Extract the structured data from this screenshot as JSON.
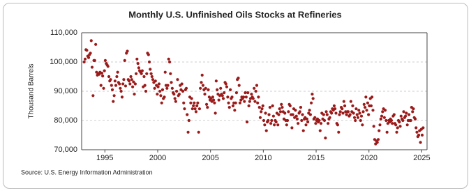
{
  "chart_data": {
    "type": "scatter",
    "title": "Monthly U.S. Unfinished Oils Stocks at Refineries",
    "y_label": "Thousand Barrels",
    "source": "Source: U.S. Energy Information Administration",
    "color": "#9b1b1b",
    "grid": true,
    "xlim": [
      1992.8,
      2025.5
    ],
    "xticks": [
      1995,
      2000,
      2005,
      2010,
      2015,
      2020,
      2025
    ],
    "ylim": [
      70000,
      110000
    ],
    "yticks": [
      {
        "value": 70000,
        "label": "70,000"
      },
      {
        "value": 80000,
        "label": "80,000"
      },
      {
        "value": 90000,
        "label": "90,000"
      },
      {
        "value": 100000,
        "label": "100,000"
      },
      {
        "value": 110000,
        "label": "110,000"
      }
    ],
    "x": [
      1993.04,
      1993.13,
      1993.21,
      1993.29,
      1993.38,
      1993.46,
      1993.54,
      1993.63,
      1993.71,
      1993.79,
      1993.88,
      1993.96,
      1994.04,
      1994.13,
      1994.21,
      1994.29,
      1994.38,
      1994.46,
      1994.54,
      1994.63,
      1994.71,
      1994.79,
      1994.88,
      1994.96,
      1995.04,
      1995.13,
      1995.21,
      1995.29,
      1995.38,
      1995.46,
      1995.54,
      1995.63,
      1995.71,
      1995.79,
      1995.88,
      1995.96,
      1996.04,
      1996.13,
      1996.21,
      1996.29,
      1996.38,
      1996.46,
      1996.54,
      1996.63,
      1996.71,
      1996.79,
      1996.88,
      1996.96,
      1997.04,
      1997.13,
      1997.21,
      1997.29,
      1997.38,
      1997.46,
      1997.54,
      1997.63,
      1997.71,
      1997.79,
      1997.88,
      1997.96,
      1998.04,
      1998.13,
      1998.21,
      1998.29,
      1998.38,
      1998.46,
      1998.54,
      1998.63,
      1998.71,
      1998.79,
      1998.88,
      1998.96,
      1999.04,
      1999.13,
      1999.21,
      1999.29,
      1999.38,
      1999.46,
      1999.54,
      1999.63,
      1999.71,
      1999.79,
      1999.88,
      1999.96,
      2000.04,
      2000.13,
      2000.21,
      2000.29,
      2000.38,
      2000.46,
      2000.54,
      2000.63,
      2000.71,
      2000.79,
      2000.88,
      2000.96,
      2001.04,
      2001.13,
      2001.21,
      2001.29,
      2001.38,
      2001.46,
      2001.54,
      2001.63,
      2001.71,
      2001.79,
      2001.88,
      2001.96,
      2002.04,
      2002.13,
      2002.21,
      2002.29,
      2002.38,
      2002.46,
      2002.54,
      2002.63,
      2002.71,
      2002.79,
      2002.88,
      2002.96,
      2003.04,
      2003.13,
      2003.21,
      2003.29,
      2003.38,
      2003.46,
      2003.54,
      2003.63,
      2003.71,
      2003.79,
      2003.88,
      2003.96,
      2004.04,
      2004.13,
      2004.21,
      2004.29,
      2004.38,
      2004.46,
      2004.54,
      2004.63,
      2004.71,
      2004.79,
      2004.88,
      2004.96,
      2005.04,
      2005.13,
      2005.21,
      2005.29,
      2005.38,
      2005.46,
      2005.54,
      2005.63,
      2005.71,
      2005.79,
      2005.88,
      2005.96,
      2006.04,
      2006.13,
      2006.21,
      2006.29,
      2006.38,
      2006.46,
      2006.54,
      2006.63,
      2006.71,
      2006.79,
      2006.88,
      2006.96,
      2007.04,
      2007.13,
      2007.21,
      2007.29,
      2007.38,
      2007.46,
      2007.54,
      2007.63,
      2007.71,
      2007.79,
      2007.88,
      2007.96,
      2008.04,
      2008.13,
      2008.21,
      2008.29,
      2008.38,
      2008.46,
      2008.54,
      2008.63,
      2008.71,
      2008.79,
      2008.88,
      2008.96,
      2009.04,
      2009.13,
      2009.21,
      2009.29,
      2009.38,
      2009.46,
      2009.54,
      2009.63,
      2009.71,
      2009.79,
      2009.88,
      2009.96,
      2010.04,
      2010.13,
      2010.21,
      2010.29,
      2010.38,
      2010.46,
      2010.54,
      2010.63,
      2010.71,
      2010.79,
      2010.88,
      2010.96,
      2011.04,
      2011.13,
      2011.21,
      2011.29,
      2011.38,
      2011.46,
      2011.54,
      2011.63,
      2011.71,
      2011.79,
      2011.88,
      2011.96,
      2012.04,
      2012.13,
      2012.21,
      2012.29,
      2012.38,
      2012.46,
      2012.54,
      2012.63,
      2012.71,
      2012.79,
      2012.88,
      2012.96,
      2013.04,
      2013.13,
      2013.21,
      2013.29,
      2013.38,
      2013.46,
      2013.54,
      2013.63,
      2013.71,
      2013.79,
      2013.88,
      2013.96,
      2014.04,
      2014.13,
      2014.21,
      2014.29,
      2014.38,
      2014.46,
      2014.54,
      2014.63,
      2014.71,
      2014.79,
      2014.88,
      2014.96,
      2015.04,
      2015.13,
      2015.21,
      2015.29,
      2015.38,
      2015.46,
      2015.54,
      2015.63,
      2015.71,
      2015.79,
      2015.88,
      2015.96,
      2016.04,
      2016.13,
      2016.21,
      2016.29,
      2016.38,
      2016.46,
      2016.54,
      2016.63,
      2016.71,
      2016.79,
      2016.88,
      2016.96,
      2017.04,
      2017.13,
      2017.21,
      2017.29,
      2017.38,
      2017.46,
      2017.54,
      2017.63,
      2017.71,
      2017.79,
      2017.88,
      2017.96,
      2018.04,
      2018.13,
      2018.21,
      2018.29,
      2018.38,
      2018.46,
      2018.54,
      2018.63,
      2018.71,
      2018.79,
      2018.88,
      2018.96,
      2019.04,
      2019.13,
      2019.21,
      2019.29,
      2019.38,
      2019.46,
      2019.54,
      2019.63,
      2019.71,
      2019.79,
      2019.88,
      2019.96,
      2020.04,
      2020.13,
      2020.21,
      2020.29,
      2020.38,
      2020.46,
      2020.54,
      2020.63,
      2020.71,
      2020.79,
      2020.88,
      2020.96,
      2021.04,
      2021.13,
      2021.21,
      2021.29,
      2021.38,
      2021.46,
      2021.54,
      2021.63,
      2021.71,
      2021.79,
      2021.88,
      2021.96,
      2022.04,
      2022.13,
      2022.21,
      2022.29,
      2022.38,
      2022.46,
      2022.54,
      2022.63,
      2022.71,
      2022.79,
      2022.88,
      2022.96,
      2023.04,
      2023.13,
      2023.21,
      2023.29,
      2023.38,
      2023.46,
      2023.54,
      2023.63,
      2023.71,
      2023.79,
      2023.88,
      2023.96,
      2024.04,
      2024.13,
      2024.21,
      2024.29,
      2024.38,
      2024.46,
      2024.54,
      2024.63,
      2024.71,
      2024.79,
      2024.88,
      2024.96,
      2025.04,
      2025.13
    ],
    "values": [
      100000,
      101000,
      104200,
      104000,
      102000,
      101500,
      102500,
      103000,
      107300,
      98200,
      88500,
      100500,
      100500,
      106000,
      96500,
      95500,
      96000,
      95800,
      96500,
      92000,
      96200,
      95200,
      91000,
      97000,
      100500,
      99500,
      99000,
      98500,
      95000,
      93500,
      94000,
      92000,
      90500,
      86500,
      88500,
      93500,
      92000,
      95000,
      96500,
      93000,
      92500,
      91000,
      90000,
      88000,
      92500,
      94000,
      100500,
      91800,
      103000,
      103700,
      94000,
      93500,
      92500,
      95000,
      94000,
      91500,
      93200,
      89000,
      92500,
      96000,
      101000,
      99500,
      98000,
      97000,
      96500,
      96000,
      97000,
      91500,
      95000,
      92000,
      90000,
      96000,
      103000,
      102500,
      100000,
      97500,
      96000,
      95000,
      94000,
      93000,
      91000,
      93500,
      92000,
      89000,
      91500,
      92500,
      90000,
      88500,
      86000,
      90500,
      87500,
      88000,
      96500,
      92000,
      91000,
      92000,
      101000,
      100000,
      96000,
      93000,
      91000,
      89500,
      89000,
      87500,
      86500,
      90000,
      94000,
      88500,
      89000,
      92000,
      90500,
      92500,
      90000,
      86000,
      84000,
      90500,
      91000,
      82000,
      76000,
      80000,
      88000,
      86000,
      87500,
      84000,
      85000,
      86000,
      84000,
      83000,
      85000,
      86000,
      76000,
      84000,
      91000,
      93000,
      95500,
      92000,
      90500,
      89000,
      91000,
      85500,
      84500,
      90500,
      88000,
      87000,
      87500,
      86500,
      88000,
      87000,
      86000,
      82500,
      93500,
      90500,
      89000,
      87000,
      88500,
      91000,
      89000,
      88500,
      87500,
      89500,
      93000,
      92500,
      91500,
      88000,
      86000,
      84500,
      90500,
      87500,
      88000,
      85000,
      86000,
      83500,
      86000,
      89500,
      94000,
      94500,
      92000,
      86000,
      87000,
      88000,
      87500,
      88000,
      86500,
      89500,
      88000,
      79500,
      89500,
      85000,
      86500,
      87500,
      89000,
      88000,
      87500,
      91000,
      86500,
      90000,
      92000,
      86000,
      88000,
      84500,
      81000,
      83000,
      84000,
      85000,
      80000,
      78500,
      82500,
      76500,
      79500,
      80000,
      82000,
      84500,
      79000,
      80000,
      85000,
      81500,
      78500,
      80000,
      79500,
      82500,
      78500,
      82000,
      84000,
      83000,
      85500,
      84500,
      83000,
      80500,
      82500,
      80000,
      78500,
      80000,
      83000,
      85500,
      85000,
      82000,
      77500,
      82000,
      84000,
      81000,
      83500,
      81500,
      80500,
      79000,
      82500,
      83000,
      84500,
      80000,
      82000,
      76500,
      80500,
      81000,
      78500,
      80500,
      79500,
      82500,
      83500,
      82000,
      86000,
      89000,
      87500,
      80500,
      81000,
      79000,
      80000,
      80500,
      79500,
      80000,
      76500,
      79000,
      82500,
      80500,
      82000,
      80000,
      74000,
      83000,
      82000,
      79000,
      80500,
      81000,
      83000,
      82500,
      84000,
      83500,
      85000,
      84000,
      82500,
      79000,
      78500,
      76000,
      82000,
      83000,
      84500,
      84000,
      82500,
      86500,
      85000,
      83000,
      82000,
      83000,
      83000,
      81500,
      82000,
      86500,
      83000,
      85000,
      82500,
      81000,
      80000,
      84000,
      82000,
      81000,
      83500,
      82500,
      80000,
      81500,
      78500,
      83000,
      85500,
      84500,
      88000,
      83500,
      86000,
      82000,
      85000,
      87500,
      85000,
      88000,
      83500,
      78000,
      73500,
      72000,
      73000,
      72500,
      73500,
      76500,
      78500,
      80500,
      81500,
      83000,
      84000,
      81000,
      83500,
      80000,
      76000,
      79000,
      80000,
      79500,
      80500,
      80000,
      79000,
      81500,
      82000,
      79000,
      78500,
      76000,
      77500,
      80000,
      79500,
      78000,
      81500,
      80500,
      80000,
      83000,
      81000,
      81500,
      82500,
      78500,
      80000,
      82000,
      80000,
      80000,
      84500,
      83000,
      84000,
      81000,
      80500,
      77500,
      76000,
      74500,
      75000,
      76500,
      72500,
      77000,
      75000,
      77500
    ]
  }
}
